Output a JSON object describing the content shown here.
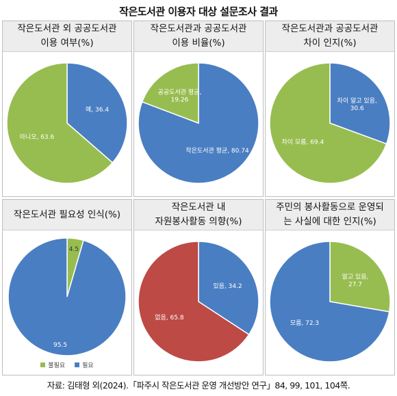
{
  "title": "작은도서관 이용자 대상 설문조사 결과",
  "source": "자료: 김태형 외(2024).「파주시 작은도서관 운영 개선방안 연구」84, 99, 101, 104쪽.",
  "colors": {
    "green": "#97bd50",
    "blue": "#4a7ec2",
    "red": "#bd4a45",
    "background": "#ffffff"
  },
  "chart_data": [
    {
      "type": "pie",
      "title": "작은도서관 외 공공도서관\n이용 여부(%)",
      "slices": [
        {
          "label": "예, 36.4",
          "name": "예",
          "value": 36.4,
          "color": "#4a7ec2"
        },
        {
          "label": "아니오, 63.6",
          "name": "아니오",
          "value": 63.6,
          "color": "#97bd50"
        }
      ]
    },
    {
      "type": "pie",
      "title": "작은도서관과 공공도서관\n이용 비율(%)",
      "slices": [
        {
          "label": "작은도서관 평균, 80.74",
          "name": "작은도서관 평균",
          "value": 80.74,
          "color": "#4a7ec2"
        },
        {
          "label": "공공도서관 평균,\n19.26",
          "name": "공공도서관 평균",
          "value": 19.26,
          "color": "#97bd50"
        }
      ]
    },
    {
      "type": "pie",
      "title": "작은도서관과 공공도서관\n차이 인지(%)",
      "slices": [
        {
          "label": "차이 알고 있음,\n30.6",
          "name": "차이 알고 있음",
          "value": 30.6,
          "color": "#4a7ec2"
        },
        {
          "label": "차이 모름, 69.4",
          "name": "차이 모름",
          "value": 69.4,
          "color": "#97bd50"
        }
      ]
    },
    {
      "type": "pie",
      "title": "작은도서관 필요성 인식(%)",
      "legend": [
        "불필요",
        "필요"
      ],
      "slices": [
        {
          "label": "4.5",
          "name": "불필요",
          "value": 4.5,
          "color": "#97bd50"
        },
        {
          "label": "95.5",
          "name": "필요",
          "value": 95.5,
          "color": "#4a7ec2"
        }
      ]
    },
    {
      "type": "pie",
      "title": "작은도서관 내\n자원봉사활동 의향(%)",
      "slices": [
        {
          "label": "있음, 34.2",
          "name": "있음",
          "value": 34.2,
          "color": "#4a7ec2"
        },
        {
          "label": "없음, 65.8",
          "name": "없음",
          "value": 65.8,
          "color": "#bd4a45"
        }
      ]
    },
    {
      "type": "pie",
      "title": "주민의 봉사활동으로 운영되\n는 사실에 대한 인지(%)",
      "slices": [
        {
          "label": "알고 있음,\n27.7",
          "name": "알고 있음",
          "value": 27.7,
          "color": "#97bd50"
        },
        {
          "label": "모름, 72.3",
          "name": "모름",
          "value": 72.3,
          "color": "#4a7ec2"
        }
      ]
    }
  ]
}
